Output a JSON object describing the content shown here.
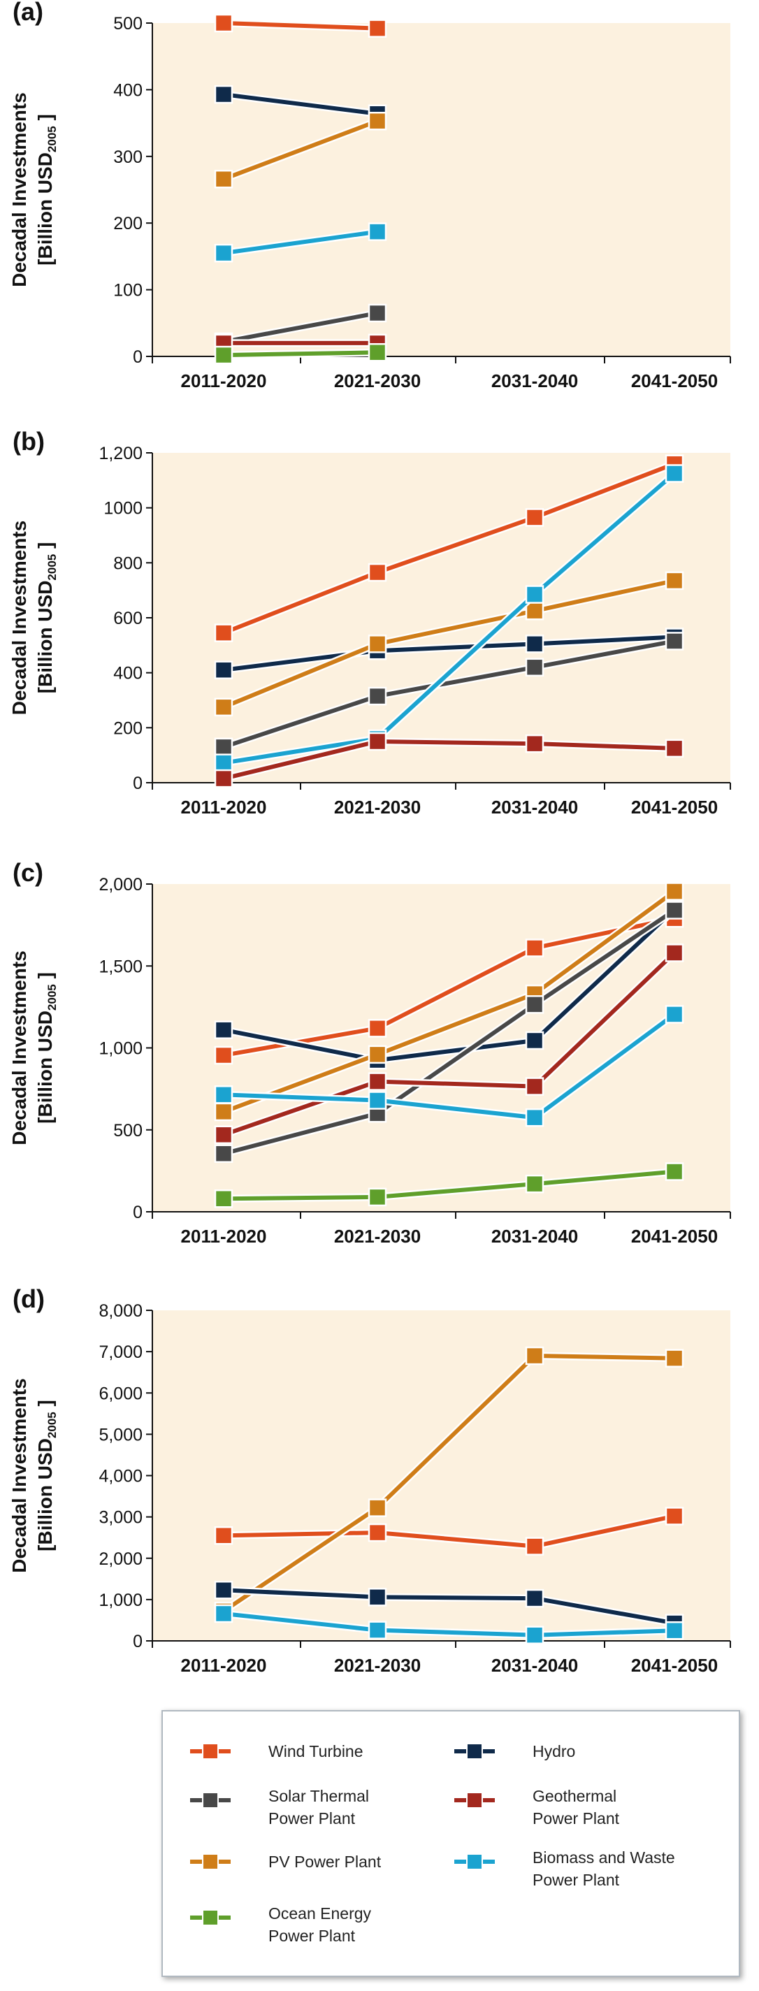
{
  "y_axis": {
    "line1": "Decadal Investments",
    "line2_prefix": "[Billion USD",
    "line2_sub": "2005",
    "line2_suffix": " ]"
  },
  "series_styles": [
    {
      "name": "Wind Turbine",
      "color": "#e04e1d"
    },
    {
      "name": "Hydro",
      "color": "#0f2a4a"
    },
    {
      "name": "Solar Thermal Power Plant",
      "color": "#484848"
    },
    {
      "name": "Geothermal Power Plant",
      "color": "#a3281e"
    },
    {
      "name": "PV Power Plant",
      "color": "#cf7d18"
    },
    {
      "name": "Biomass and Waste Power Plant",
      "color": "#1ba3d0"
    },
    {
      "name": "Ocean Energy Power Plant",
      "color": "#5f9f2b"
    }
  ],
  "legend": {
    "items": [
      {
        "series": "Wind Turbine",
        "lines": [
          "Wind Turbine"
        ]
      },
      {
        "series": "Hydro",
        "lines": [
          "Hydro"
        ]
      },
      {
        "series": "Solar Thermal Power Plant",
        "lines": [
          "Solar Thermal",
          "Power Plant"
        ]
      },
      {
        "series": "Geothermal Power Plant",
        "lines": [
          "Geothermal",
          "Power Plant"
        ]
      },
      {
        "series": "PV Power Plant",
        "lines": [
          "PV Power Plant"
        ]
      },
      {
        "series": "Biomass and Waste Power Plant",
        "lines": [
          "Biomass and Waste",
          "Power Plant"
        ]
      },
      {
        "series": "Ocean Energy Power Plant",
        "lines": [
          "Ocean Energy",
          "Power Plant"
        ]
      }
    ]
  },
  "chart_data": [
    {
      "type": "line",
      "panel": "(a)",
      "categories": [
        "2011-2020",
        "2021-2030",
        "2031-2040",
        "2041-2050"
      ],
      "ylim": [
        0,
        500
      ],
      "yticks": [
        0,
        100,
        200,
        300,
        400,
        500
      ],
      "ytick_labels": [
        "0",
        "100",
        "200",
        "300",
        "400",
        "500"
      ],
      "grid": false,
      "series": [
        {
          "name": "Wind Turbine",
          "values": [
            500,
            492,
            null,
            null
          ]
        },
        {
          "name": "Hydro",
          "values": [
            393,
            364,
            null,
            null
          ]
        },
        {
          "name": "PV Power Plant",
          "values": [
            266,
            353,
            null,
            null
          ]
        },
        {
          "name": "Biomass and Waste Power Plant",
          "values": [
            155,
            187,
            null,
            null
          ]
        },
        {
          "name": "Solar Thermal Power Plant",
          "values": [
            22,
            65,
            null,
            null
          ]
        },
        {
          "name": "Geothermal Power Plant",
          "values": [
            20,
            20,
            null,
            null
          ]
        },
        {
          "name": "Ocean Energy Power Plant",
          "values": [
            2,
            6,
            null,
            null
          ]
        }
      ]
    },
    {
      "type": "line",
      "panel": "(b)",
      "categories": [
        "2011-2020",
        "2021-2030",
        "2031-2040",
        "2041-2050"
      ],
      "ylim": [
        0,
        1200
      ],
      "yticks": [
        0,
        200,
        400,
        600,
        800,
        1000,
        1200
      ],
      "ytick_labels": [
        "0",
        "200",
        "400",
        "600",
        "800",
        "1000",
        "1,200"
      ],
      "grid": false,
      "series": [
        {
          "name": "Wind Turbine",
          "values": [
            545,
            765,
            965,
            1160
          ]
        },
        {
          "name": "Hydro",
          "values": [
            410,
            480,
            505,
            530
          ]
        },
        {
          "name": "PV Power Plant",
          "values": [
            275,
            505,
            625,
            735
          ]
        },
        {
          "name": "Solar Thermal Power Plant",
          "values": [
            130,
            315,
            420,
            515
          ]
        },
        {
          "name": "Biomass and Waste Power Plant",
          "values": [
            72,
            160,
            685,
            1125
          ]
        },
        {
          "name": "Geothermal Power Plant",
          "values": [
            15,
            150,
            142,
            125
          ]
        }
      ]
    },
    {
      "type": "line",
      "panel": "(c)",
      "categories": [
        "2011-2020",
        "2021-2030",
        "2031-2040",
        "2041-2050"
      ],
      "ylim": [
        0,
        2000
      ],
      "yticks": [
        0,
        500,
        1000,
        1500,
        2000
      ],
      "ytick_labels": [
        "0",
        "500",
        "1,000",
        "1,500",
        "2,000"
      ],
      "grid": false,
      "series": [
        {
          "name": "Wind Turbine",
          "values": [
            955,
            1120,
            1610,
            1790
          ]
        },
        {
          "name": "Hydro",
          "values": [
            1110,
            925,
            1045,
            1845
          ]
        },
        {
          "name": "PV Power Plant",
          "values": [
            610,
            960,
            1330,
            1955
          ]
        },
        {
          "name": "Solar Thermal Power Plant",
          "values": [
            355,
            600,
            1265,
            1840
          ]
        },
        {
          "name": "Geothermal Power Plant",
          "values": [
            470,
            795,
            765,
            1580
          ]
        },
        {
          "name": "Biomass and Waste Power Plant",
          "values": [
            715,
            680,
            575,
            1205
          ]
        },
        {
          "name": "Ocean Energy Power Plant",
          "values": [
            80,
            90,
            170,
            245
          ]
        }
      ]
    },
    {
      "type": "line",
      "panel": "(d)",
      "categories": [
        "2011-2020",
        "2021-2030",
        "2031-2040",
        "2041-2050"
      ],
      "ylim": [
        0,
        8000
      ],
      "yticks": [
        0,
        1000,
        2000,
        3000,
        4000,
        5000,
        6000,
        7000,
        8000
      ],
      "ytick_labels": [
        "0",
        "1,000",
        "2,000",
        "3,000",
        "4,000",
        "5,000",
        "6,000",
        "7,000",
        "8,000"
      ],
      "grid": false,
      "series": [
        {
          "name": "Wind Turbine",
          "values": [
            2550,
            2620,
            2290,
            3020
          ]
        },
        {
          "name": "PV Power Plant",
          "values": [
            720,
            3220,
            6900,
            6840
          ]
        },
        {
          "name": "Hydro",
          "values": [
            1230,
            1060,
            1030,
            430
          ]
        },
        {
          "name": "Biomass and Waste Power Plant",
          "values": [
            660,
            260,
            140,
            250
          ]
        }
      ]
    }
  ]
}
